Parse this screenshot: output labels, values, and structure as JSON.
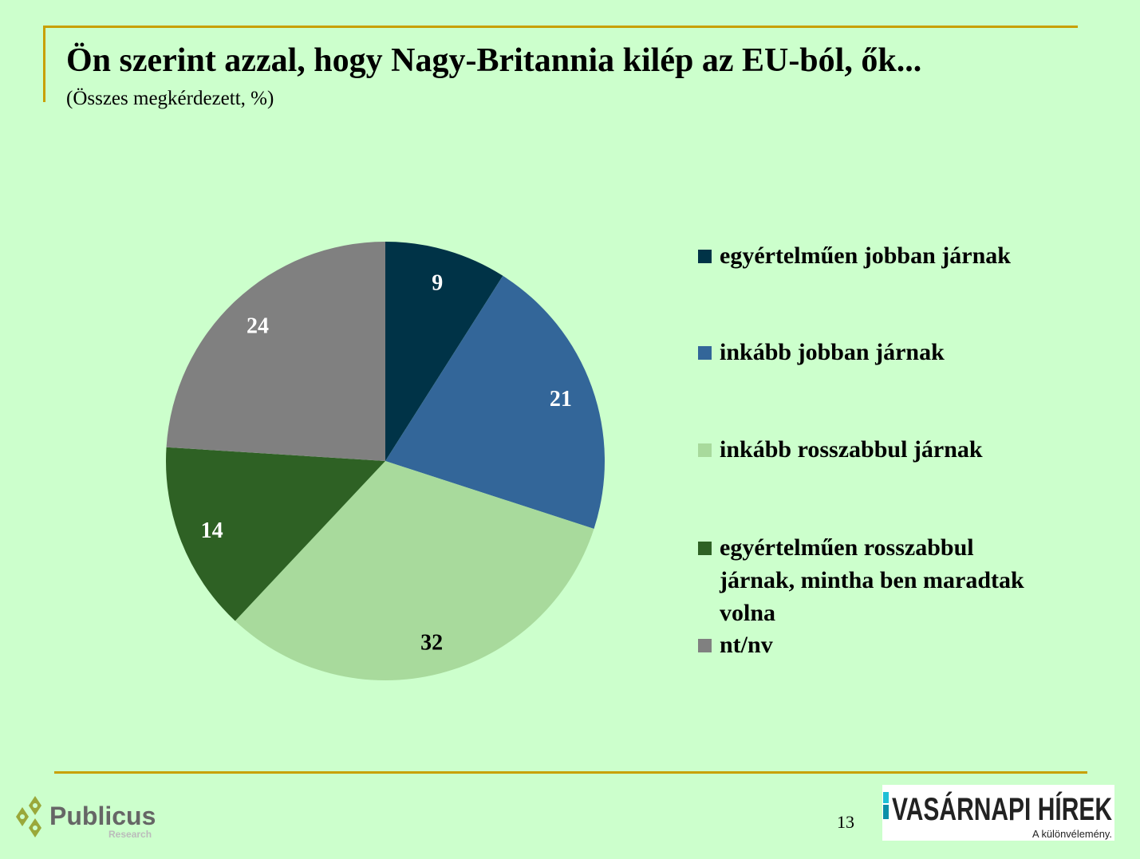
{
  "title": "Ön szerint azzal, hogy Nagy-Britannia kilép az EU-ból, ők...",
  "subtitle": "(Összes megkérdezett, %)",
  "page_number": "13",
  "logos": {
    "left": "Publicus Research",
    "right": "VASÁRNAPI HÍREK A különvélemény."
  },
  "colors": {
    "background": "#ccffcc",
    "rule": "#c8a000"
  },
  "chart_data": {
    "type": "pie",
    "title": "Ön szerint azzal, hogy Nagy-Britannia kilép az EU-ból, ők...",
    "subtitle": "(Összes megkérdezett, %)",
    "legend_position": "right",
    "start": "12 o'clock, clockwise",
    "slices": [
      {
        "label": "egyértelműen jobban járnak",
        "value": 9,
        "color": "#003347",
        "label_color": "#ffffff"
      },
      {
        "label": "inkább jobban járnak",
        "value": 21,
        "color": "#336699",
        "label_color": "#ffffff"
      },
      {
        "label": "inkább rosszabbul járnak",
        "value": 32,
        "color": "#a8da9c",
        "label_color": "#000000"
      },
      {
        "label": "egyértelműen rosszabbul járnak, mintha ben maradtak volna",
        "value": 14,
        "color": "#2e6124",
        "label_color": "#ffffff"
      },
      {
        "label": "nt/nv",
        "value": 24,
        "color": "#808080",
        "label_color": "#ffffff"
      }
    ]
  }
}
